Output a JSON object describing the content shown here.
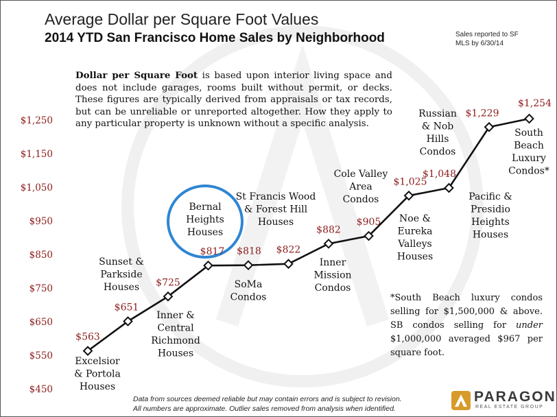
{
  "title": "Average Dollar per Square Foot Values",
  "subtitle": "2014 YTD San Francisco Home Sales by Neighborhood",
  "sales_note": "Sales reported to SF MLS by 6/30/14",
  "description": {
    "bold": "Dollar per Square Foot",
    "text": " is based upon interior living space and does not include garages, rooms built without permit, or decks. These figures are typically derived from appraisals or tax records, but can be unreliable or unreported altogether. How they apply to any particular property is unknown without a specific analysis."
  },
  "footnote": {
    "pre": "*South Beach luxury condos selling for $1,500,000 & above. SB condos selling for ",
    "italic": "under",
    "post": " $1,000,000 averaged $967 per square foot."
  },
  "source_lines": [
    "Data from sources deemed reliable but may contain errors and is subject to revision.",
    "All numbers are approximate. Outlier sales removed from analysis when identified."
  ],
  "logo": {
    "name": "PARAGON",
    "tagline": "REAL ESTATE GROUP"
  },
  "colors": {
    "value_label": "#8b1a1a",
    "axis_label": "#8b1a1a",
    "line": "#111111",
    "highlight": "#2f86d3"
  },
  "chart_data": {
    "type": "line",
    "title": "Average Dollar per Square Foot Values",
    "xlabel": "",
    "ylabel": "",
    "ylim": [
      450,
      1300
    ],
    "yticks": [
      450,
      550,
      650,
      750,
      850,
      950,
      1050,
      1150,
      1250
    ],
    "ytick_labels": [
      "$450",
      "$550",
      "$650",
      "$750",
      "$850",
      "$950",
      "$1,050",
      "$1,150",
      "$1,250"
    ],
    "highlighted": "Bernal Heights Houses",
    "points": [
      {
        "name": "Excelsior & Portola Houses",
        "lines": [
          "Excelsior",
          "& Portola",
          "Houses"
        ],
        "value": 563,
        "label": "$563",
        "side": "below"
      },
      {
        "name": "Sunset & Parkside Houses",
        "lines": [
          "Sunset &",
          "Parkside",
          "Houses"
        ],
        "value": 651,
        "label": "$651",
        "side": "above"
      },
      {
        "name": "Inner & Central Richmond Houses",
        "lines": [
          "Inner &",
          "Central",
          "Richmond",
          "Houses"
        ],
        "value": 725,
        "label": "$725",
        "side": "below"
      },
      {
        "name": "Bernal Heights Houses",
        "lines": [
          "Bernal",
          "Heights",
          "Houses"
        ],
        "value": 817,
        "label": "$817",
        "side": "above"
      },
      {
        "name": "SoMa Condos",
        "lines": [
          "SoMa",
          "Condos"
        ],
        "value": 818,
        "label": "$818",
        "side": "below"
      },
      {
        "name": "St Francis Wood & Forest Hill Houses",
        "lines": [
          "St Francis Wood",
          "& Forest Hill",
          "Houses"
        ],
        "value": 822,
        "label": "$822",
        "side": "above"
      },
      {
        "name": "Inner Mission Condos",
        "lines": [
          "Inner",
          "Mission",
          "Condos"
        ],
        "value": 882,
        "label": "$882",
        "side": "below"
      },
      {
        "name": "Cole Valley Area Condos",
        "lines": [
          "Cole Valley",
          "Area",
          "Condos"
        ],
        "value": 905,
        "label": "$905",
        "side": "above"
      },
      {
        "name": "Noe & Eureka Valleys Houses",
        "lines": [
          "Noe &",
          "Eureka",
          "Valleys",
          "Houses"
        ],
        "value": 1025,
        "label": "$1,025",
        "side": "below"
      },
      {
        "name": "Russian & Nob Hills Condos",
        "lines": [
          "Russian",
          "& Nob",
          "Hills",
          "Condos"
        ],
        "value": 1048,
        "label": "$1,048",
        "side": "above"
      },
      {
        "name": "Pacific & Presidio Heights Houses",
        "lines": [
          "Pacific &",
          "Presidio",
          "Heights",
          "Houses"
        ],
        "value": 1229,
        "label": "$1,229",
        "side": "below"
      },
      {
        "name": "South Beach Luxury Condos*",
        "lines": [
          "South",
          "Beach",
          "Luxury",
          "Condos*"
        ],
        "value": 1254,
        "label": "$1,254",
        "side": "below"
      }
    ]
  }
}
